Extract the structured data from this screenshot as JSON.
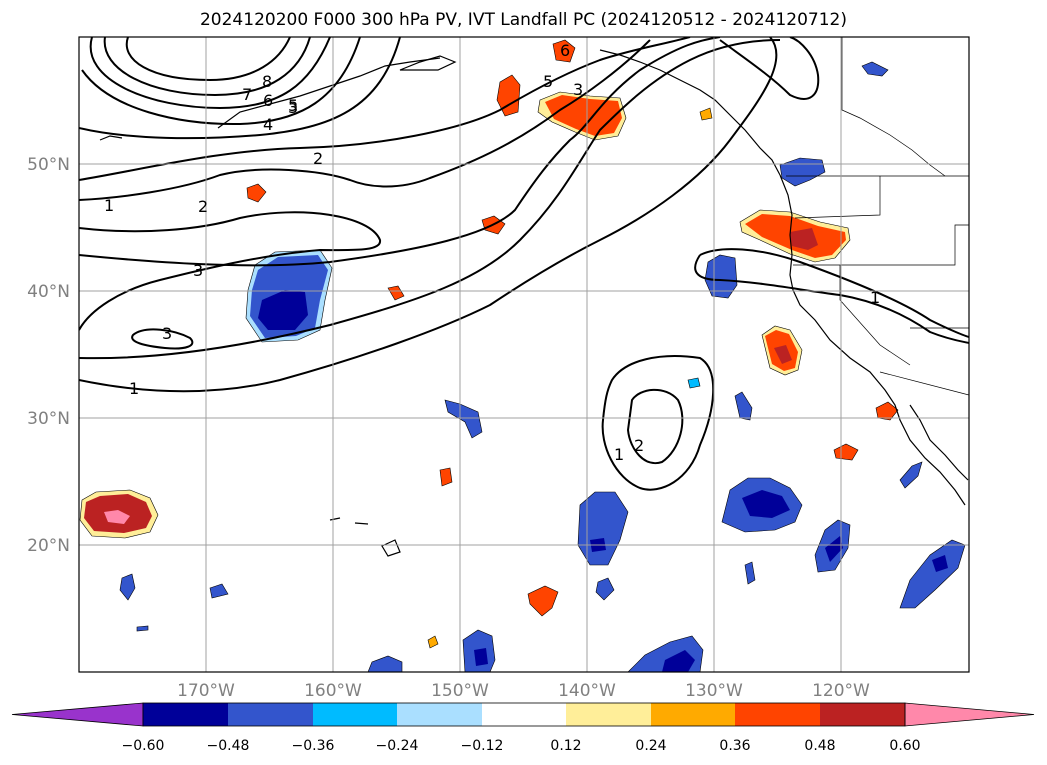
{
  "title": "2024120200 F000 300 hPa PV, IVT Landfall PC (2024120512 - 2024120712)",
  "map": {
    "lon_range": [
      -180,
      -110
    ],
    "lat_range": [
      10,
      60
    ],
    "lat_labels": [
      "50°N",
      "40°N",
      "30°N",
      "20°N"
    ],
    "lon_labels": [
      "170°W",
      "160°W",
      "150°W",
      "140°W",
      "130°W",
      "120°W"
    ],
    "contour_labels": [
      "8",
      "7",
      "6",
      "5",
      "4",
      "3",
      "2",
      "1",
      "2",
      "3",
      "3",
      "1",
      "6",
      "5",
      "3",
      "1",
      "1",
      "2"
    ],
    "label_color": "#808080"
  },
  "colorbar": {
    "tick_labels": [
      "−0.60",
      "−0.48",
      "−0.36",
      "−0.24",
      "−0.12",
      "0.12",
      "0.24",
      "0.36",
      "0.48",
      "0.60"
    ],
    "colors": [
      "#9933cc",
      "#000099",
      "#3355cc",
      "#00bbff",
      "#aadfff",
      "#ffffff",
      "#ffee99",
      "#ffaa00",
      "#ff4400",
      "#bb2222",
      "#ff88aa"
    ]
  }
}
